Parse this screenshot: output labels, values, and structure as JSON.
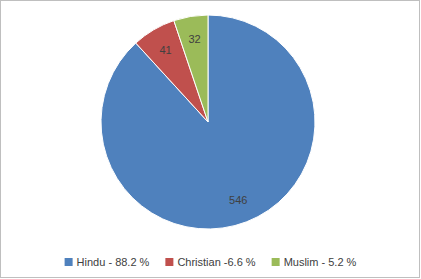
{
  "chart_data": {
    "type": "pie",
    "categories": [
      "Hindu - 88.2 %",
      "Christian -6.6 %",
      "Muslim - 5.2 %"
    ],
    "values": [
      546,
      41,
      32
    ],
    "colors": [
      "#4f81bd",
      "#c0504d",
      "#9bbb59"
    ],
    "data_labels": true,
    "legend": "bottom"
  }
}
